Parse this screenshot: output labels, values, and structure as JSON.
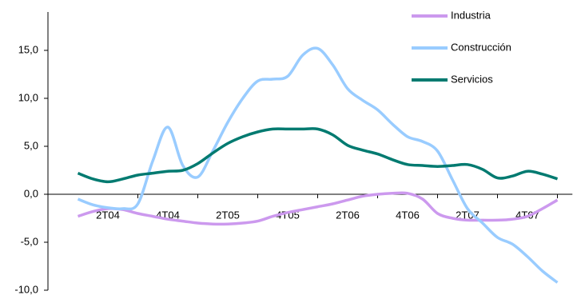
{
  "chart_data": {
    "type": "line",
    "categories": [
      null,
      null,
      "2T04",
      null,
      null,
      null,
      "4T04",
      null,
      null,
      null,
      "2T05",
      null,
      null,
      null,
      "4T05",
      null,
      null,
      null,
      "2T06",
      null,
      null,
      null,
      "4T06",
      null,
      null,
      null,
      "2T07",
      null,
      null,
      null,
      "4T07",
      null,
      null
    ],
    "series": [
      {
        "name": "Industria",
        "color": "#cc99ee",
        "values": [
          -2.3,
          -1.8,
          -1.5,
          -1.6,
          -2.0,
          -2.3,
          -2.6,
          -2.8,
          -3.0,
          -3.1,
          -3.1,
          -3.0,
          -2.8,
          -2.3,
          -1.9,
          -1.6,
          -1.3,
          -1.0,
          -0.6,
          -0.2,
          0.0,
          0.1,
          0.1,
          -0.5,
          -2.0,
          -2.5,
          -2.7,
          -2.7,
          -2.7,
          -2.6,
          -2.3,
          -1.5,
          -0.6
        ]
      },
      {
        "name": "Construcción",
        "color": "#99ccff",
        "values": [
          -0.5,
          -1.1,
          -1.4,
          -1.5,
          -1.0,
          3.5,
          7.0,
          3.0,
          1.8,
          4.5,
          7.5,
          10.0,
          11.8,
          12.0,
          12.3,
          14.5,
          15.2,
          13.5,
          11.0,
          9.8,
          8.8,
          7.3,
          6.0,
          5.5,
          4.5,
          1.5,
          -1.5,
          -3.0,
          -4.5,
          -5.2,
          -6.5,
          -8.0,
          -9.2
        ]
      },
      {
        "name": "Servicios",
        "color": "#007a70",
        "values": [
          2.2,
          1.6,
          1.3,
          1.6,
          2.0,
          2.2,
          2.4,
          2.5,
          3.2,
          4.3,
          5.3,
          6.0,
          6.5,
          6.8,
          6.8,
          6.8,
          6.8,
          6.2,
          5.1,
          4.6,
          4.2,
          3.6,
          3.1,
          3.0,
          2.9,
          3.0,
          3.1,
          2.6,
          1.7,
          1.9,
          2.4,
          2.1,
          1.6
        ]
      }
    ],
    "ylim": [
      -10,
      19
    ],
    "yticks": [
      {
        "value": -10,
        "label": "-10,0"
      },
      {
        "value": -5,
        "label": "-5,0"
      },
      {
        "value": 0,
        "label": "0,0"
      },
      {
        "value": 5,
        "label": "5,0"
      },
      {
        "value": 10,
        "label": "10,0"
      },
      {
        "value": 15,
        "label": "15,0"
      }
    ],
    "legend": "top-right",
    "grid": false
  }
}
